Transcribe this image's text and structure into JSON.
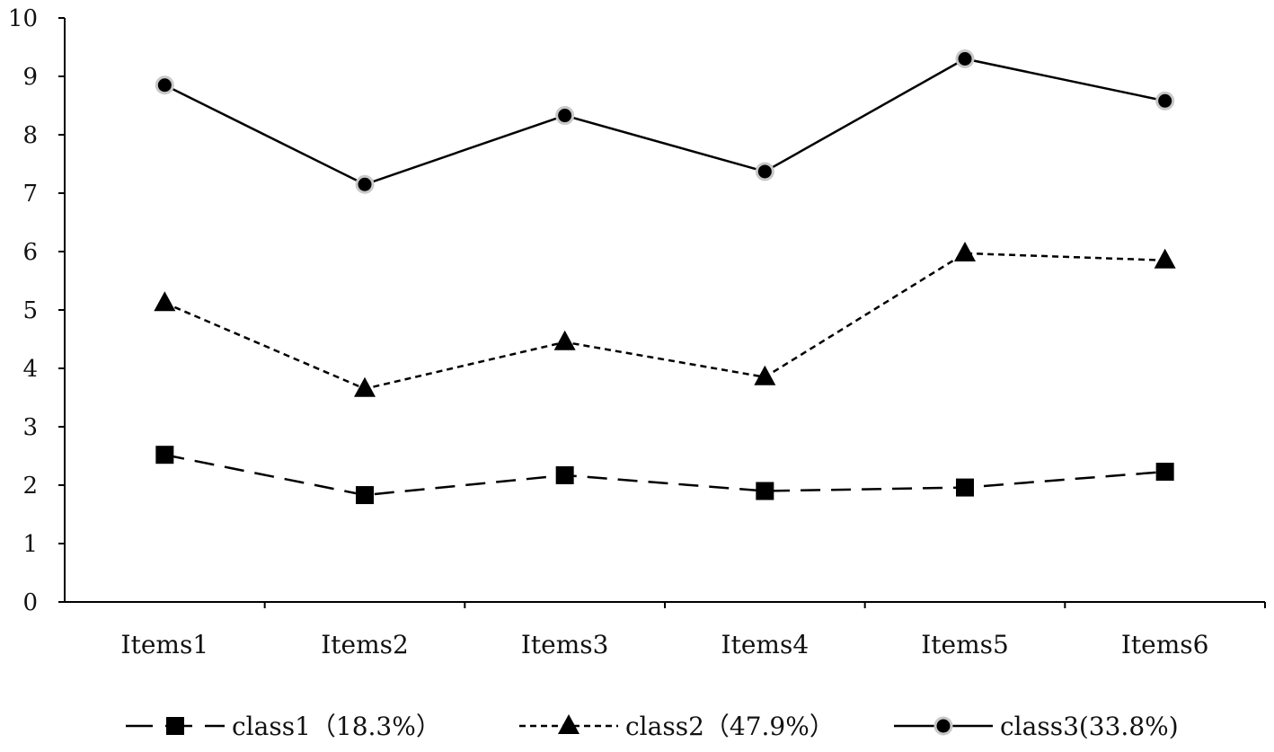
{
  "chart_data": {
    "type": "line",
    "categories": [
      "Items1",
      "Items2",
      "Items3",
      "Items4",
      "Items5",
      "Items6"
    ],
    "ylim": [
      0,
      10
    ],
    "yticks": [
      "0",
      "1",
      "2",
      "3",
      "4",
      "5",
      "6",
      "7",
      "8",
      "9",
      "10"
    ],
    "grid": false,
    "legend_position": "bottom",
    "series": [
      {
        "name": "class1（18.3%）",
        "marker": "square",
        "line_style": "long-dash",
        "color": "#000000",
        "values": [
          2.52,
          1.83,
          2.17,
          1.9,
          1.96,
          2.23
        ]
      },
      {
        "name": "class2（47.9%）",
        "marker": "triangle",
        "line_style": "short-dash",
        "color": "#000000",
        "values": [
          5.12,
          3.65,
          4.45,
          3.85,
          5.97,
          5.85
        ]
      },
      {
        "name": "class3(33.8%)",
        "marker": "circle",
        "line_style": "solid",
        "color": "#000000",
        "values": [
          8.85,
          7.15,
          8.33,
          7.37,
          9.3,
          8.58
        ]
      }
    ]
  }
}
